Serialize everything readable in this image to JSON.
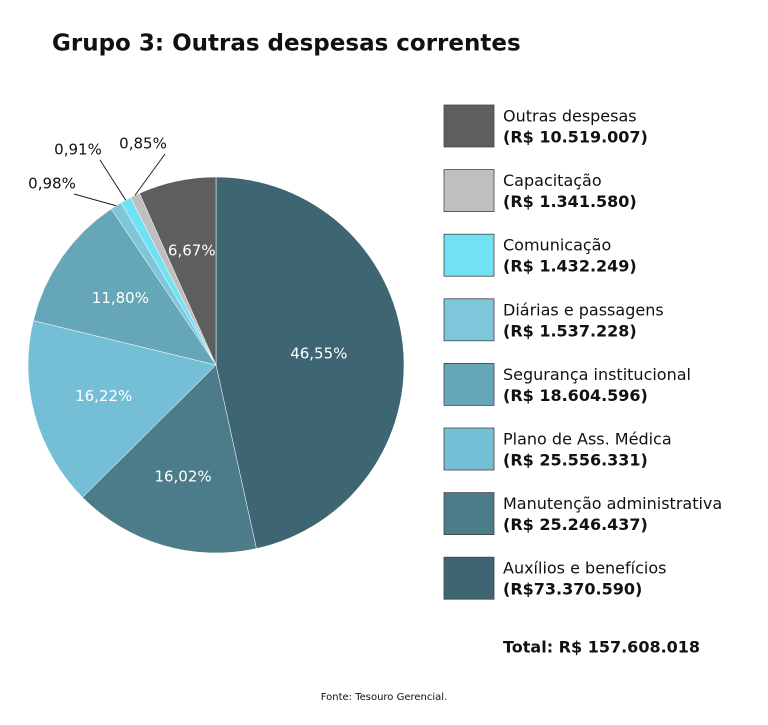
{
  "chart_data": {
    "type": "pie",
    "title": "Grupo 3: Outras despesas correntes",
    "categories": [
      "Auxílios e benefícios",
      "Manutenção administrativa",
      "Plano de Ass. Médica",
      "Segurança institucional",
      "Diárias e passagens",
      "Comunicação",
      "Capacitação",
      "Outras despesas"
    ],
    "values": [
      46.55,
      16.02,
      16.22,
      11.8,
      0.98,
      0.91,
      0.85,
      6.67
    ],
    "value_labels": [
      "46,55%",
      "16,02%",
      "16,22%",
      "11,80%",
      "0,98%",
      "0,91%",
      "0,85%",
      "6,67%"
    ],
    "amount_labels": [
      "(R$73.370.590)",
      "(R$ 25.246.437)",
      "(R$ 25.556.331)",
      "(R$ 18.604.596)",
      "(R$ 1.537.228)",
      "(R$ 1.432.249)",
      "(R$ 1.341.580)",
      "(R$ 10.519.007)"
    ],
    "colors": [
      "#3e6572",
      "#4c7c89",
      "#74bfd6",
      "#66a6b9",
      "#7ec6d9",
      "#70e2f4",
      "#bfbfbf",
      "#5e5e5e"
    ],
    "total": "Total: R$ 157.608.018",
    "source": "Fonte:  Tesouro Gerencial."
  }
}
